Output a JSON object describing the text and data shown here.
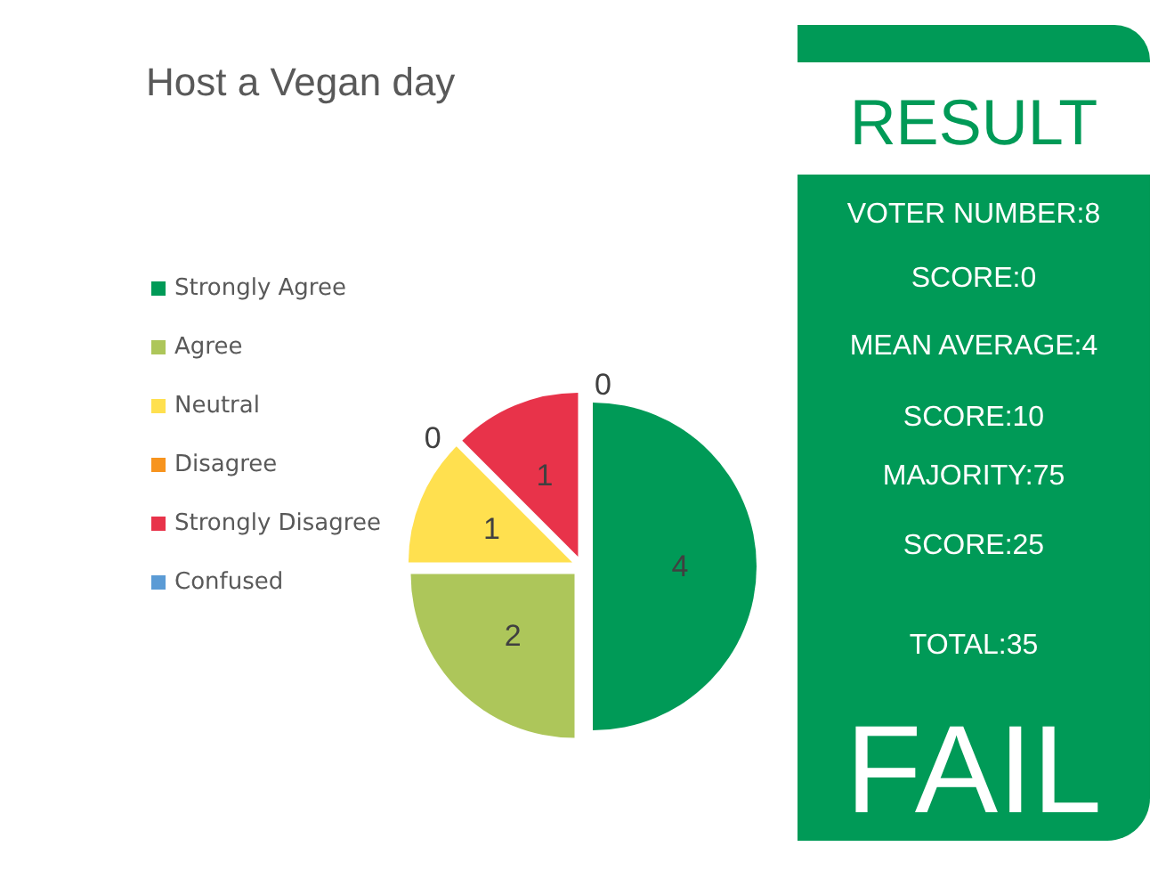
{
  "chart_data": [
    {
      "type": "pie",
      "title": "Host a Vegan day",
      "categories": [
        "Strongly Agree",
        "Agree",
        "Neutral",
        "Disagree",
        "Strongly Disagree",
        "Confused"
      ],
      "values": [
        4,
        2,
        1,
        0,
        1,
        0
      ],
      "colors": [
        "#009a57",
        "#adc65a",
        "#ffe04f",
        "#f7941e",
        "#e8334a",
        "#5b9bd5"
      ],
      "value_labels": [
        "4",
        "2",
        "1",
        "0",
        "1",
        "0"
      ],
      "legend": "left"
    },
    {
      "type": "other",
      "title": "RESULT",
      "annotations": [
        "VOTER NUMBER:8",
        "SCORE:0",
        "MEAN AVERAGE:4",
        "SCORE:10",
        "MAJORITY:75",
        "SCORE:25",
        "TOTAL:35",
        "FAIL"
      ]
    }
  ]
}
